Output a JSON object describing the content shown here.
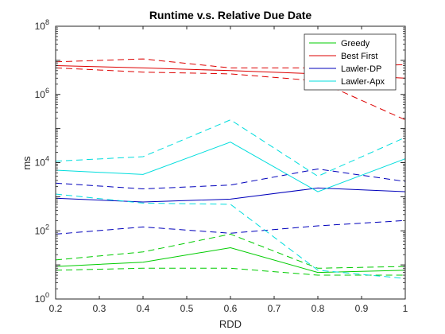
{
  "chart_data": {
    "type": "line",
    "title": "Runtime v.s. Relative Due Date",
    "xlabel": "RDD",
    "ylabel": "ms",
    "xlim": [
      0.2,
      1
    ],
    "ylim": [
      1,
      100000000
    ],
    "yscale": "log",
    "grid": false,
    "legend_position": "top-right",
    "x": [
      0.2,
      0.4,
      0.6,
      0.8,
      1.0
    ],
    "x_ticks": [
      "0.2",
      "0.3",
      "0.4",
      "0.5",
      "0.6",
      "0.7",
      "0.8",
      "0.9",
      "1"
    ],
    "y_ticks": [
      {
        "exp": "0",
        "value": 1
      },
      {
        "exp": "2",
        "value": 100
      },
      {
        "exp": "4",
        "value": 10000
      },
      {
        "exp": "6",
        "value": 1000000
      },
      {
        "exp": "8",
        "value": 100000000
      }
    ],
    "series": [
      {
        "name": "Greedy",
        "color": "#00cc00",
        "style": "solid",
        "values": [
          9,
          12,
          32,
          6,
          7
        ],
        "upper": [
          14,
          24,
          80,
          8,
          9
        ],
        "lower": [
          7,
          8,
          8,
          5,
          5
        ]
      },
      {
        "name": "Best First",
        "color": "#dd0000",
        "style": "solid",
        "values": [
          7000000,
          6000000,
          5000000,
          4000000,
          3000000
        ],
        "upper": [
          9000000,
          11000000,
          6000000,
          6000000,
          7500000
        ],
        "lower": [
          6000000,
          4500000,
          4000000,
          2500000,
          180000
        ]
      },
      {
        "name": "Lawler-DP",
        "color": "#0000bb",
        "style": "solid",
        "values": [
          900,
          700,
          850,
          1800,
          1400
        ],
        "upper": [
          2500,
          1700,
          2200,
          6500,
          2800
        ],
        "lower": [
          80,
          130,
          85,
          140,
          200
        ]
      },
      {
        "name": "Lawler-Apx",
        "color": "#00dddd",
        "style": "solid",
        "values": [
          6000,
          4500,
          40000,
          1400,
          13000
        ],
        "upper": [
          11000,
          15000,
          180000,
          4000,
          55000
        ],
        "lower": [
          1200,
          650,
          600,
          7,
          4
        ]
      }
    ]
  }
}
